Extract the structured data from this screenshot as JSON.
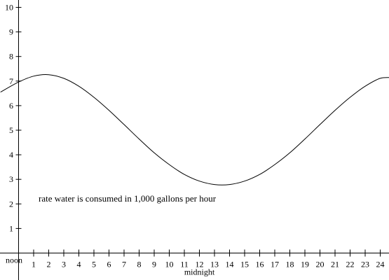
{
  "chart_data": {
    "type": "line",
    "title": "",
    "xlabel": "",
    "ylabel": "",
    "xlim": [
      -1.2,
      25
    ],
    "ylim": [
      0,
      10
    ],
    "x_ticks": [
      1,
      2,
      3,
      4,
      5,
      6,
      7,
      8,
      9,
      10,
      11,
      12,
      13,
      14,
      15,
      16,
      17,
      18,
      19,
      20,
      21,
      22,
      23,
      24
    ],
    "x_tick_labels": [
      "1",
      "2",
      "3",
      "4",
      "5",
      "6",
      "7",
      "8",
      "9",
      "10",
      "11",
      "12",
      "13",
      "14",
      "15",
      "16",
      "17",
      "18",
      "19",
      "20",
      "21",
      "22",
      "23",
      "24"
    ],
    "y_ticks": [
      1,
      2,
      3,
      4,
      5,
      6,
      7,
      8,
      9,
      10
    ],
    "y_tick_labels": [
      "1",
      "2",
      "3",
      "4",
      "5",
      "6",
      "7",
      "8",
      "9",
      "10"
    ],
    "annotations": {
      "origin_label": "noon",
      "midnight_label": "midnight",
      "curve_label": "rate water is consumed in 1,000 gallons per hour"
    },
    "series": [
      {
        "color": "#000000",
        "x": [
          -1.2,
          0,
          1,
          2,
          3,
          4,
          5,
          6,
          7,
          8,
          9,
          10,
          11,
          12,
          13,
          14,
          15,
          16,
          17,
          18,
          19,
          20,
          21,
          22,
          23,
          24,
          24.8
        ],
        "y": [
          6.55,
          6.96,
          7.2,
          7.26,
          7.11,
          6.79,
          6.34,
          5.81,
          5.23,
          4.64,
          4.08,
          3.6,
          3.2,
          2.93,
          2.79,
          2.79,
          2.93,
          3.2,
          3.6,
          4.08,
          4.64,
          5.23,
          5.81,
          6.34,
          6.79,
          7.11,
          7.14
        ]
      }
    ],
    "grid": false,
    "legend": "none"
  }
}
